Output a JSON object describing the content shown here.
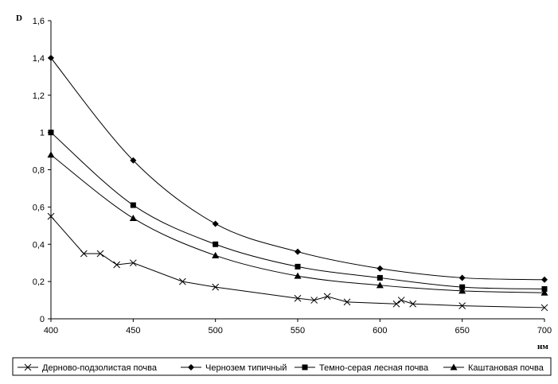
{
  "chart_data": {
    "type": "line",
    "title": "",
    "ylabel": "D",
    "xlabel": "нм",
    "xlim": [
      400,
      700
    ],
    "ylim": [
      0,
      1.6
    ],
    "x_ticks": [
      "400",
      "450",
      "500",
      "550",
      "600",
      "650",
      "700"
    ],
    "y_ticks": [
      "0",
      "0,2",
      "0,4",
      "0,6",
      "0,8",
      "1",
      "1,2",
      "1,4",
      "1,6"
    ],
    "grid": false,
    "legend_position": "bottom",
    "series": [
      {
        "name": "Дерново-подзолистая почва",
        "marker": "x",
        "x": [
          400,
          420,
          430,
          440,
          450,
          480,
          500,
          550,
          560,
          568,
          580,
          610,
          613,
          620,
          650,
          700
        ],
        "y": [
          0.55,
          0.35,
          0.35,
          0.29,
          0.3,
          0.2,
          0.17,
          0.11,
          0.1,
          0.12,
          0.09,
          0.08,
          0.1,
          0.08,
          0.07,
          0.06
        ]
      },
      {
        "name": "Чернозем типичный",
        "marker": "diamond",
        "x": [
          400,
          450,
          500,
          550,
          600,
          650,
          700
        ],
        "y": [
          1.4,
          0.85,
          0.51,
          0.36,
          0.27,
          0.22,
          0.21
        ]
      },
      {
        "name": "Темно-серая лесная почва",
        "marker": "square",
        "x": [
          400,
          450,
          500,
          550,
          600,
          650,
          700
        ],
        "y": [
          1.0,
          0.61,
          0.4,
          0.28,
          0.22,
          0.17,
          0.16
        ]
      },
      {
        "name": "Каштановая почва",
        "marker": "triangle",
        "x": [
          400,
          450,
          500,
          550,
          600,
          650,
          700
        ],
        "y": [
          0.88,
          0.54,
          0.34,
          0.23,
          0.18,
          0.15,
          0.14
        ]
      }
    ]
  }
}
